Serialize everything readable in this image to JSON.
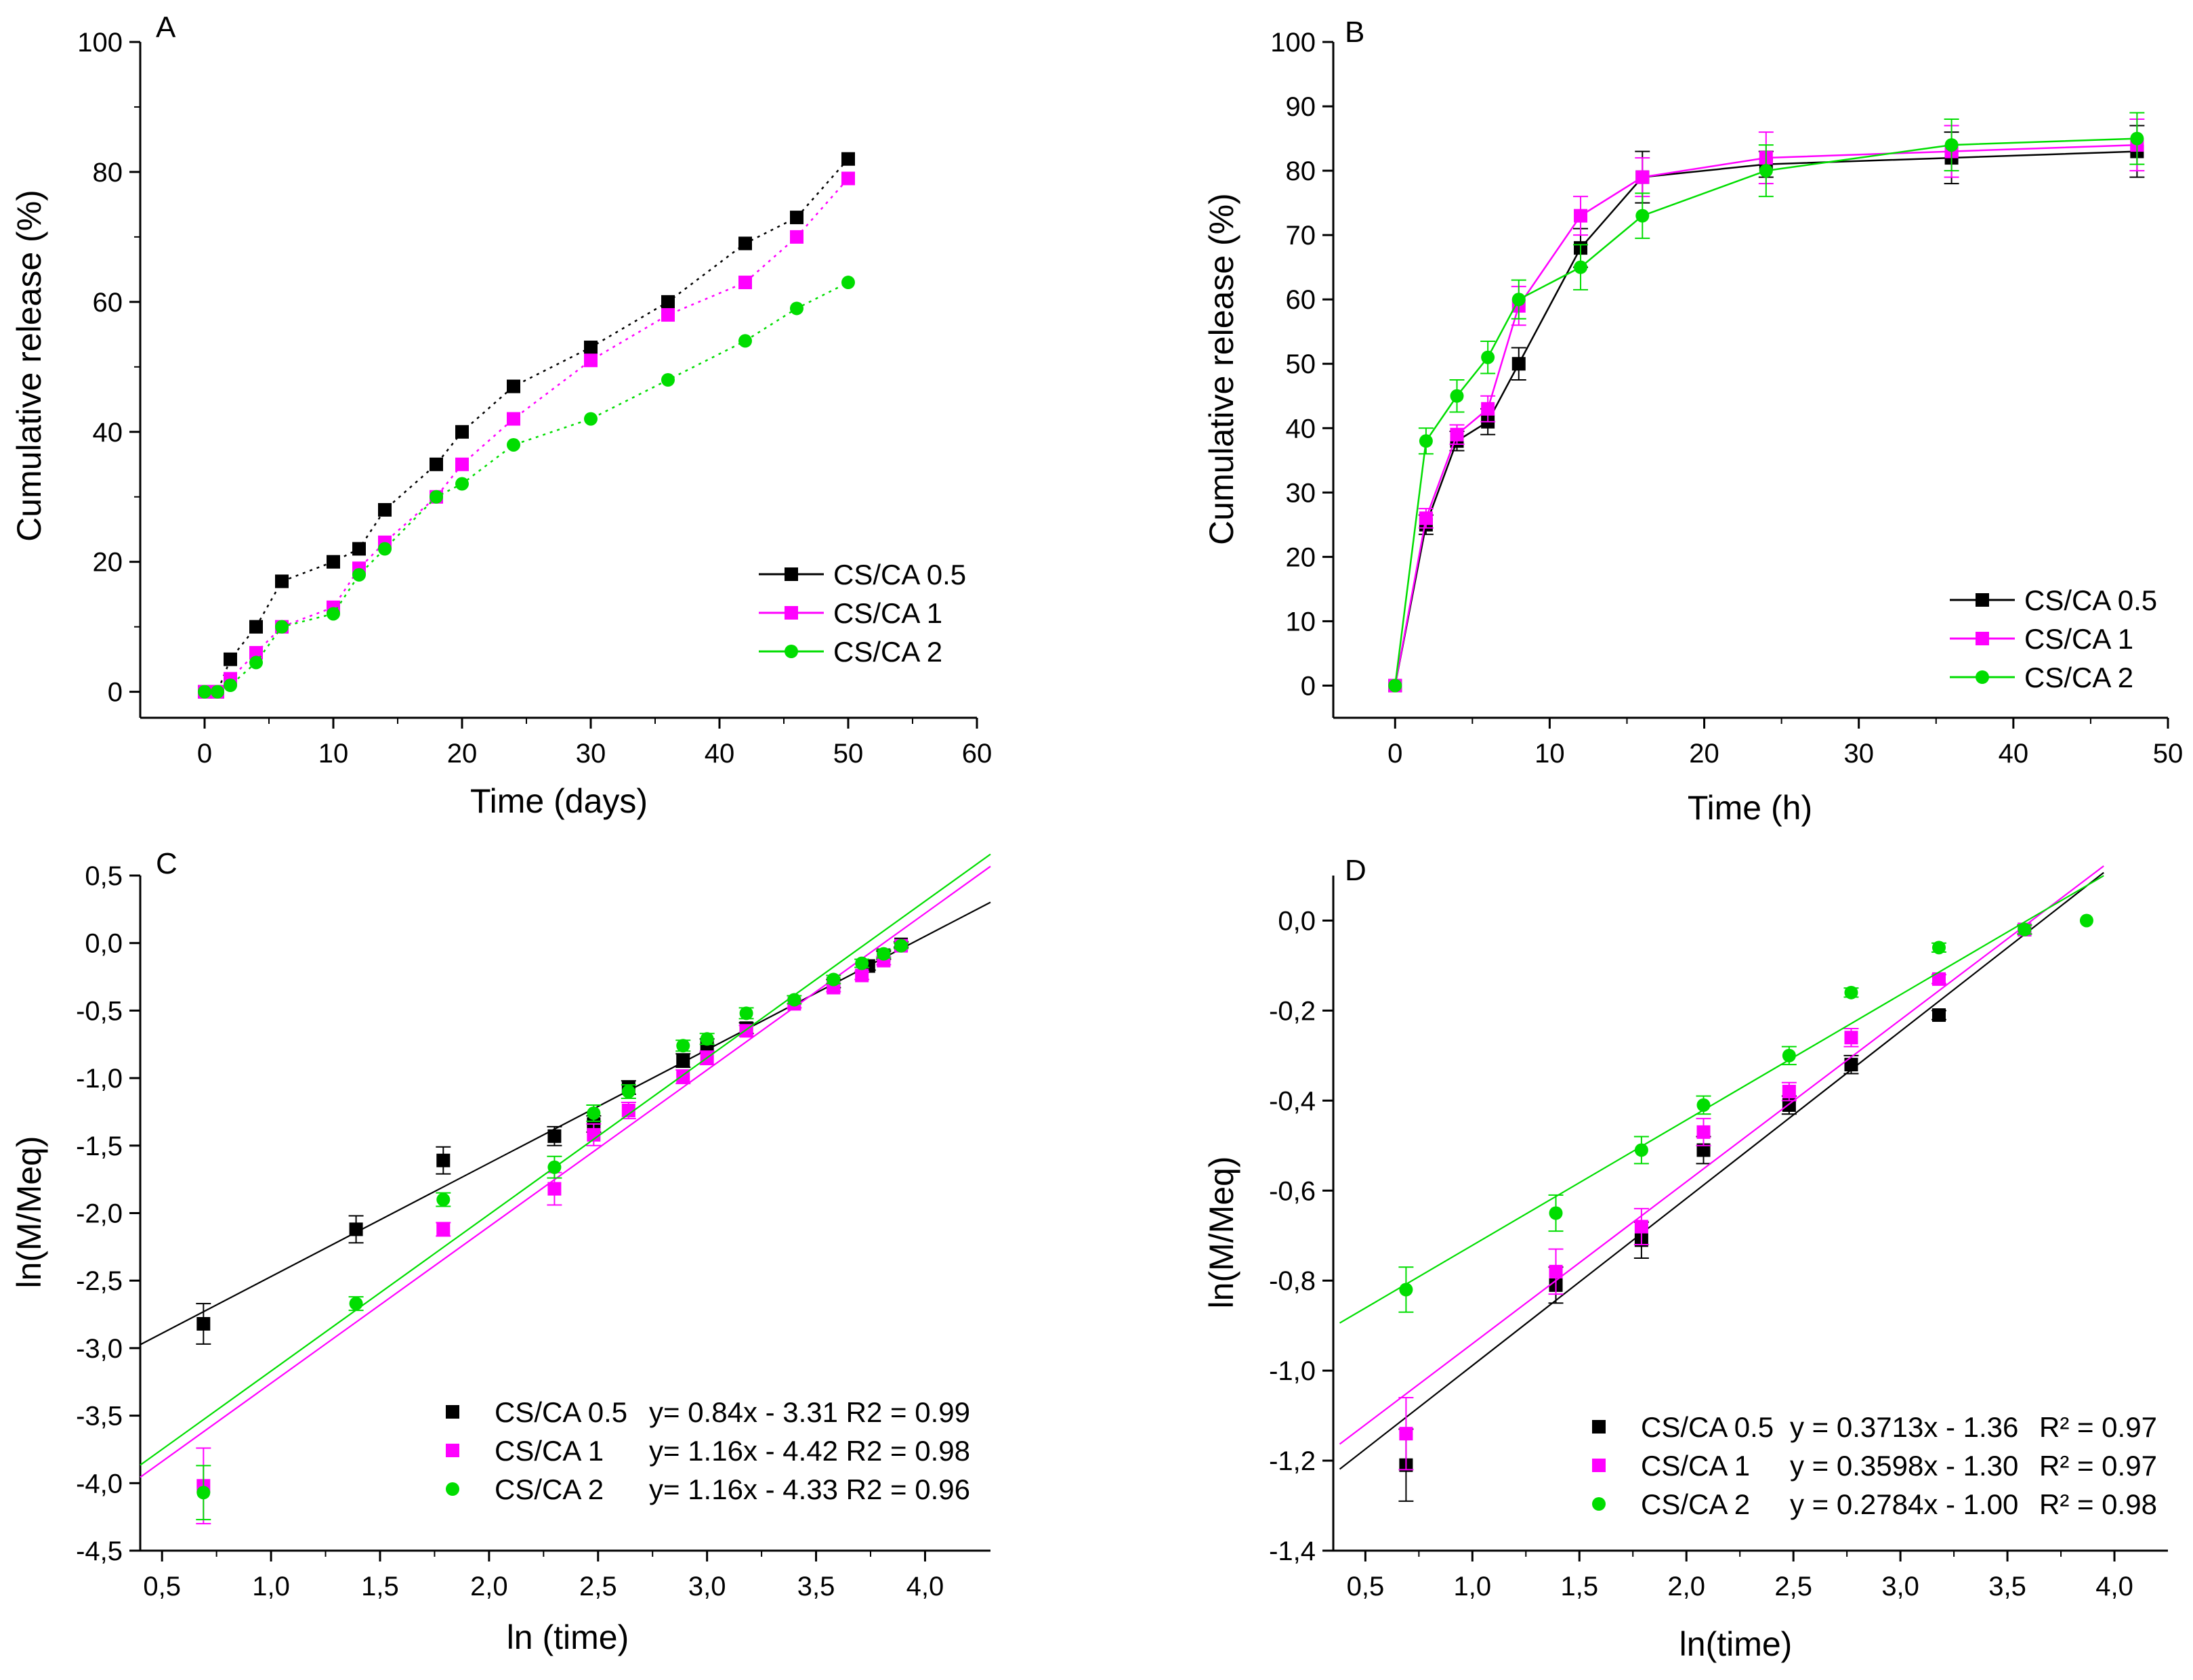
{
  "colors": {
    "cs05": "#000000",
    "cs1": "#ff00ff",
    "cs2": "#00dd00"
  },
  "chart_data": [
    {
      "panel": "A",
      "type": "line",
      "xlabel": "Time (days)",
      "ylabel": "Cumulative release (%)",
      "xlim": [
        -5,
        60
      ],
      "ylim": [
        -4,
        100
      ],
      "xticks": [
        0,
        10,
        20,
        30,
        40,
        50,
        60
      ],
      "xtick_labels": [
        "0",
        "10",
        "20",
        "30",
        "40",
        "50",
        "60"
      ],
      "yticks": [
        0,
        20,
        40,
        60,
        80,
        100
      ],
      "ytick_labels": [
        "0",
        "20",
        "40",
        "60",
        "80",
        "100"
      ],
      "legend_position": "bottom-right",
      "series": [
        {
          "name": "CS/CA 0.5",
          "color": "#000000",
          "marker": "square",
          "dash": "dot",
          "x": [
            0,
            1,
            2,
            4,
            6,
            10,
            12,
            14,
            18,
            20,
            24,
            30,
            36,
            42,
            46,
            50
          ],
          "y": [
            0,
            0,
            5,
            10,
            17,
            20,
            22,
            28,
            35,
            40,
            47,
            53,
            60,
            69,
            73,
            82
          ]
        },
        {
          "name": "CS/CA 1",
          "color": "#ff00ff",
          "marker": "square",
          "dash": "dot",
          "x": [
            0,
            1,
            2,
            4,
            6,
            10,
            12,
            14,
            18,
            20,
            24,
            30,
            36,
            42,
            46,
            50
          ],
          "y": [
            0,
            0,
            2,
            6,
            10,
            13,
            19,
            23,
            30,
            35,
            42,
            51,
            58,
            63,
            70,
            79
          ]
        },
        {
          "name": "CS/CA 2",
          "color": "#00dd00",
          "marker": "circle",
          "dash": "dot",
          "x": [
            0,
            1,
            2,
            4,
            6,
            10,
            12,
            14,
            18,
            20,
            24,
            30,
            36,
            42,
            46,
            50
          ],
          "y": [
            0,
            0,
            1,
            4.5,
            10,
            12,
            18,
            22,
            30,
            32,
            38,
            42,
            48,
            54,
            59,
            63
          ]
        }
      ]
    },
    {
      "panel": "B",
      "type": "line",
      "xlabel": "Time (h)",
      "ylabel": "Cumulative release (%)",
      "xlim": [
        -4,
        50
      ],
      "ylim": [
        -5,
        100
      ],
      "xticks": [
        0,
        10,
        20,
        30,
        40,
        50
      ],
      "xtick_labels": [
        "0",
        "10",
        "20",
        "30",
        "40",
        "50"
      ],
      "yticks": [
        0,
        10,
        20,
        30,
        40,
        50,
        60,
        70,
        80,
        90,
        100
      ],
      "ytick_labels": [
        "0",
        "10",
        "20",
        "30",
        "40",
        "50",
        "60",
        "70",
        "80",
        "90",
        "100"
      ],
      "legend_position": "bottom-right",
      "series": [
        {
          "name": "CS/CA 0.5",
          "color": "#000000",
          "marker": "square",
          "dash": "solid",
          "x": [
            0,
            2,
            4,
            6,
            8,
            12,
            16,
            24,
            36,
            48
          ],
          "y": [
            0,
            25,
            38,
            41,
            50,
            68,
            79,
            81,
            82,
            83
          ],
          "err": [
            0,
            1.5,
            1.5,
            2,
            2.5,
            3,
            4,
            2,
            4,
            4
          ]
        },
        {
          "name": "CS/CA 1",
          "color": "#ff00ff",
          "marker": "square",
          "dash": "solid",
          "x": [
            0,
            2,
            4,
            6,
            8,
            12,
            16,
            24,
            36,
            48
          ],
          "y": [
            0,
            26,
            39,
            43,
            59,
            73,
            79,
            82,
            83,
            84
          ],
          "err": [
            0,
            1.5,
            1.5,
            2,
            3,
            3,
            3,
            4,
            4,
            4
          ]
        },
        {
          "name": "CS/CA 2",
          "color": "#00dd00",
          "marker": "circle",
          "dash": "solid",
          "x": [
            0,
            2,
            4,
            6,
            8,
            12,
            16,
            24,
            36,
            48
          ],
          "y": [
            0,
            38,
            45,
            51,
            60,
            65,
            73,
            80,
            84,
            85
          ],
          "err": [
            0,
            2,
            2.5,
            2.5,
            3,
            3.5,
            3.5,
            4,
            4,
            4
          ]
        }
      ]
    },
    {
      "panel": "C",
      "type": "scatter",
      "xlabel": "ln (time)",
      "ylabel": "ln(M/Meq)",
      "xlim": [
        0.4,
        4.3
      ],
      "ylim": [
        -4.5,
        0.5
      ],
      "xticks": [
        0.5,
        1.0,
        1.5,
        2.0,
        2.5,
        3.0,
        3.5,
        4.0
      ],
      "xtick_labels": [
        "0,5",
        "1,0",
        "1,5",
        "2,0",
        "2,5",
        "3,0",
        "3,5",
        "4,0"
      ],
      "yticks": [
        0.5,
        0,
        -0.5,
        -1.0,
        -1.5,
        -2.0,
        -2.5,
        -3.0,
        -3.5,
        -4.0,
        -4.5
      ],
      "ytick_labels": [
        "0,5",
        "0,0",
        "-0,5",
        "-1,0",
        "-1,5",
        "-2,0",
        "-2,5",
        "-3,0",
        "-3,5",
        "-4,0",
        "-4,5"
      ],
      "legend_position": "bottom-right",
      "series": [
        {
          "name": "CS/CA 0.5",
          "equation": "y= 0.84x - 3.31 R2 = 0.99",
          "color": "#000000",
          "marker": "square",
          "fit": {
            "slope": 0.84,
            "intercept": -3.31,
            "x_range": [
              0.4,
              4.3
            ]
          },
          "x": [
            0.69,
            1.39,
            1.79,
            2.3,
            2.48,
            2.64,
            2.89,
            3.0,
            3.18,
            3.58,
            3.74,
            3.81,
            3.89
          ],
          "y": [
            -2.82,
            -2.12,
            -1.61,
            -1.43,
            -1.34,
            -1.07,
            -0.87,
            -0.76,
            -0.63,
            -0.3,
            -0.17,
            -0.09,
            -0.01
          ],
          "err": [
            0.15,
            0.1,
            0.1,
            0.07,
            0.06,
            0.05,
            0.05,
            0.05,
            0.04,
            0.03,
            0.03,
            0.03,
            0.02
          ]
        },
        {
          "name": "CS/CA 1",
          "equation": "y= 1.16x - 4.42 R2 = 0.98",
          "color": "#ff00ff",
          "marker": "square",
          "fit": {
            "slope": 1.16,
            "intercept": -4.42,
            "x_range": [
              0.4,
              4.3
            ]
          },
          "x": [
            0.69,
            1.79,
            2.3,
            2.48,
            2.64,
            2.89,
            3.0,
            3.18,
            3.4,
            3.58,
            3.71,
            3.81,
            3.89
          ],
          "y": [
            -4.02,
            -2.12,
            -1.82,
            -1.42,
            -1.24,
            -0.99,
            -0.85,
            -0.65,
            -0.45,
            -0.33,
            -0.24,
            -0.13,
            -0.02
          ],
          "err": [
            0.28,
            0.05,
            0.12,
            0.08,
            0.06,
            0.05,
            0.05,
            0.04,
            0.03,
            0.03,
            0.03,
            0.03,
            0.02
          ]
        },
        {
          "name": "CS/CA 2",
          "equation": "y= 1.16x - 4.33 R2 = 0.96",
          "color": "#00dd00",
          "marker": "circle",
          "fit": {
            "slope": 1.16,
            "intercept": -4.33,
            "x_range": [
              0.4,
              4.3
            ]
          },
          "x": [
            0.69,
            1.39,
            1.79,
            2.3,
            2.48,
            2.64,
            2.89,
            3.0,
            3.18,
            3.4,
            3.58,
            3.71,
            3.81,
            3.89
          ],
          "y": [
            -4.07,
            -2.67,
            -1.9,
            -1.66,
            -1.26,
            -1.1,
            -0.76,
            -0.71,
            -0.52,
            -0.42,
            -0.27,
            -0.15,
            -0.08,
            -0.02
          ],
          "err": [
            0.2,
            0.05,
            0.05,
            0.08,
            0.06,
            0.05,
            0.04,
            0.04,
            0.04,
            0.03,
            0.03,
            0.03,
            0.03,
            0.02
          ]
        }
      ]
    },
    {
      "panel": "D",
      "type": "scatter",
      "xlabel": "ln(time)",
      "ylabel": "ln(M/Meq)",
      "xlim": [
        0.35,
        4.25
      ],
      "ylim": [
        -1.4,
        0.1
      ],
      "xticks": [
        0.5,
        1.0,
        1.5,
        2.0,
        2.5,
        3.0,
        3.5,
        4.0
      ],
      "xtick_labels": [
        "0,5",
        "1,0",
        "1,5",
        "2,0",
        "2,5",
        "3,0",
        "3,5",
        "4,0"
      ],
      "yticks": [
        0,
        -0.2,
        -0.4,
        -0.6,
        -0.8,
        -1.0,
        -1.2,
        -1.4
      ],
      "ytick_labels": [
        "0,0",
        "-0,2",
        "-0,4",
        "-0,6",
        "-0,8",
        "-1,0",
        "-1,2",
        "-1,4"
      ],
      "legend_position": "bottom-right",
      "series": [
        {
          "name": "CS/CA 0.5",
          "equation": "y = 0.3713x - 1.36",
          "r2": "R² = 0.97",
          "color": "#000000",
          "marker": "square",
          "fit": {
            "slope": 0.3713,
            "intercept": -1.36,
            "x_range": [
              0.38,
              3.95
            ]
          },
          "x": [
            0.69,
            1.39,
            1.79,
            2.08,
            2.48,
            2.77,
            3.18,
            3.58
          ],
          "y": [
            -1.21,
            -0.81,
            -0.71,
            -0.51,
            -0.41,
            -0.32,
            -0.21,
            -0.02
          ],
          "err": [
            0.08,
            0.04,
            0.04,
            0.03,
            0.02,
            0.02,
            0.01,
            0.01
          ]
        },
        {
          "name": "CS/CA 1",
          "equation": "y = 0.3598x - 1.30",
          "r2": "R² = 0.97",
          "color": "#ff00ff",
          "marker": "square",
          "fit": {
            "slope": 0.3598,
            "intercept": -1.3,
            "x_range": [
              0.38,
              3.95
            ]
          },
          "x": [
            0.69,
            1.39,
            1.79,
            2.08,
            2.48,
            2.77,
            3.18,
            3.58
          ],
          "y": [
            -1.14,
            -0.78,
            -0.68,
            -0.47,
            -0.38,
            -0.26,
            -0.13,
            -0.02
          ],
          "err": [
            0.08,
            0.05,
            0.04,
            0.03,
            0.02,
            0.02,
            0.01,
            0.01
          ]
        },
        {
          "name": "CS/CA 2",
          "equation": "y = 0.2784x - 1.00",
          "r2": "R² = 0.98",
          "color": "#00dd00",
          "marker": "circle",
          "fit": {
            "slope": 0.2784,
            "intercept": -1.0,
            "x_range": [
              0.38,
              3.95
            ]
          },
          "x": [
            0.69,
            1.39,
            1.79,
            2.08,
            2.48,
            2.77,
            3.18,
            3.58,
            3.87
          ],
          "y": [
            -0.82,
            -0.65,
            -0.51,
            -0.41,
            -0.3,
            -0.16,
            -0.06,
            -0.02,
            0.0
          ],
          "err": [
            0.05,
            0.04,
            0.03,
            0.02,
            0.02,
            0.01,
            0.01,
            0.01,
            0.0
          ]
        }
      ]
    }
  ]
}
